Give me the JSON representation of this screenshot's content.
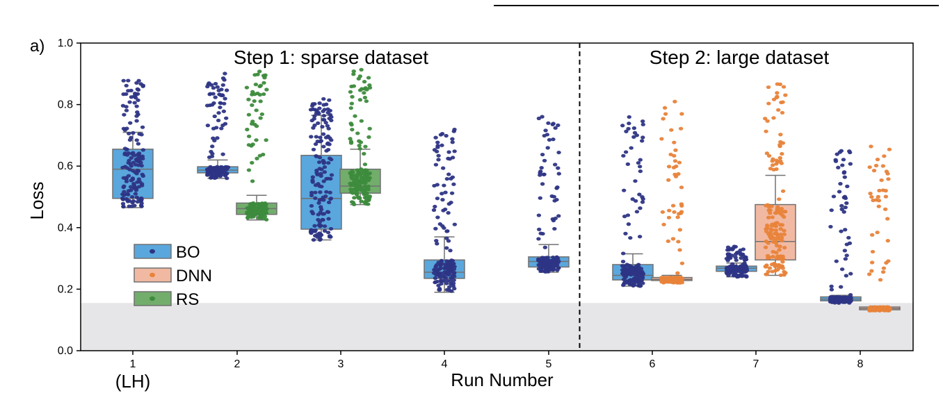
{
  "panel_label": "a)",
  "chart_data": {
    "type": "box",
    "xlabel": "Run Number",
    "ylabel": "Loss",
    "ylim": [
      0.0,
      1.0
    ],
    "yticks": [
      "0.0",
      "0.2",
      "0.4",
      "0.6",
      "0.8",
      "1.0"
    ],
    "categories": [
      "1",
      "2",
      "3",
      "4",
      "5",
      "6",
      "7",
      "8"
    ],
    "category_sublabel": "(LH)",
    "grid": false,
    "shaded_band": [
      0.0,
      0.155
    ],
    "divider_after_run": 5,
    "annotations": [
      "Step 1: sparse dataset",
      "Step 2: large dataset"
    ],
    "legend_position": "middle-left",
    "series": [
      {
        "name": "BO",
        "box_color": "#5aa7dd",
        "point_color": "#2e3585",
        "boxes": [
          {
            "run": 1,
            "min": 0.465,
            "q1": 0.495,
            "median": 0.59,
            "q3": 0.655,
            "max": 0.71,
            "pmin": 0.465,
            "pmax": 0.885
          },
          {
            "run": 2,
            "min": 0.56,
            "q1": 0.578,
            "median": 0.587,
            "q3": 0.598,
            "max": 0.62,
            "pmin": 0.56,
            "pmax": 0.905
          },
          {
            "run": 3,
            "min": 0.36,
            "q1": 0.395,
            "median": 0.495,
            "q3": 0.635,
            "max": 0.765,
            "pmin": 0.36,
            "pmax": 0.82
          },
          {
            "run": 4,
            "min": 0.19,
            "q1": 0.235,
            "median": 0.255,
            "q3": 0.295,
            "max": 0.37,
            "pmin": 0.19,
            "pmax": 0.725
          },
          {
            "run": 5,
            "min": 0.255,
            "q1": 0.272,
            "median": 0.29,
            "q3": 0.305,
            "max": 0.345,
            "pmin": 0.255,
            "pmax": 0.765
          },
          {
            "run": 6,
            "min": 0.21,
            "q1": 0.23,
            "median": 0.245,
            "q3": 0.28,
            "max": 0.315,
            "pmin": 0.21,
            "pmax": 0.76
          },
          {
            "run": 7,
            "min": 0.24,
            "q1": 0.258,
            "median": 0.268,
            "q3": 0.275,
            "max": 0.285,
            "pmin": 0.24,
            "pmax": 0.34
          },
          {
            "run": 8,
            "min": 0.155,
            "q1": 0.162,
            "median": 0.168,
            "q3": 0.175,
            "max": 0.18,
            "pmin": 0.155,
            "pmax": 0.65
          }
        ]
      },
      {
        "name": "DNN",
        "box_color": "#f2b9a2",
        "point_color": "#e8833a",
        "boxes": [
          {
            "run": 6,
            "min": 0.22,
            "q1": 0.228,
            "median": 0.232,
            "q3": 0.238,
            "max": 0.245,
            "pmin": 0.22,
            "pmax": 0.81
          },
          {
            "run": 7,
            "min": 0.245,
            "q1": 0.295,
            "median": 0.355,
            "q3": 0.475,
            "max": 0.57,
            "pmin": 0.245,
            "pmax": 0.87
          },
          {
            "run": 8,
            "min": 0.13,
            "q1": 0.133,
            "median": 0.137,
            "q3": 0.142,
            "max": 0.145,
            "pmin": 0.13,
            "pmax": 0.68
          }
        ]
      },
      {
        "name": "RS",
        "box_color": "#72ad6c",
        "point_color": "#3d8b3d",
        "boxes": [
          {
            "run": 2,
            "min": 0.425,
            "q1": 0.443,
            "median": 0.462,
            "q3": 0.48,
            "max": 0.505,
            "pmin": 0.425,
            "pmax": 0.91
          },
          {
            "run": 3,
            "min": 0.475,
            "q1": 0.512,
            "median": 0.535,
            "q3": 0.59,
            "max": 0.655,
            "pmin": 0.475,
            "pmax": 0.93
          }
        ]
      }
    ]
  }
}
